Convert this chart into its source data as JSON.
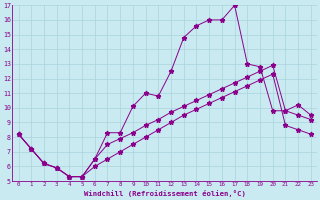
{
  "xlabel": "Windchill (Refroidissement éolien,°C)",
  "bg_color": "#c8eaf0",
  "line_color": "#8b008b",
  "grid_color": "#aad4dc",
  "xlim": [
    -0.5,
    23.5
  ],
  "ylim": [
    5,
    17
  ],
  "xticks": [
    0,
    1,
    2,
    3,
    4,
    5,
    6,
    7,
    8,
    9,
    10,
    11,
    12,
    13,
    14,
    15,
    16,
    17,
    18,
    19,
    20,
    21,
    22,
    23
  ],
  "yticks": [
    5,
    6,
    7,
    8,
    9,
    10,
    11,
    12,
    13,
    14,
    15,
    16,
    17
  ],
  "series1_x": [
    0,
    1,
    2,
    3,
    4,
    5,
    6,
    7,
    8,
    9,
    10,
    11,
    12,
    13,
    14,
    15,
    16,
    17,
    18,
    19,
    20,
    21,
    22,
    23
  ],
  "series1_y": [
    8.2,
    7.2,
    6.2,
    5.9,
    5.3,
    5.3,
    6.5,
    8.3,
    8.3,
    10.1,
    11.0,
    10.8,
    12.5,
    14.8,
    15.6,
    16.0,
    16.0,
    17.0,
    13.0,
    12.8,
    9.8,
    9.8,
    10.2,
    9.5
  ],
  "series2_x": [
    0,
    1,
    2,
    3,
    4,
    5,
    6,
    7,
    8,
    9,
    10,
    11,
    12,
    13,
    14,
    15,
    16,
    17,
    18,
    19,
    20,
    21,
    22,
    23
  ],
  "series2_y": [
    8.2,
    7.2,
    6.2,
    5.9,
    5.3,
    5.3,
    6.5,
    7.5,
    7.9,
    8.3,
    8.8,
    9.2,
    9.7,
    10.1,
    10.5,
    10.9,
    11.3,
    11.7,
    12.1,
    12.5,
    12.9,
    9.8,
    9.5,
    9.2
  ],
  "series3_x": [
    0,
    1,
    2,
    3,
    4,
    5,
    6,
    7,
    8,
    9,
    10,
    11,
    12,
    13,
    14,
    15,
    16,
    17,
    18,
    19,
    20,
    21,
    22,
    23
  ],
  "series3_y": [
    8.2,
    7.2,
    6.2,
    5.9,
    5.3,
    5.3,
    6.0,
    6.5,
    7.0,
    7.5,
    8.0,
    8.5,
    9.0,
    9.5,
    9.9,
    10.3,
    10.7,
    11.1,
    11.5,
    11.9,
    12.3,
    8.8,
    8.5,
    8.2
  ]
}
